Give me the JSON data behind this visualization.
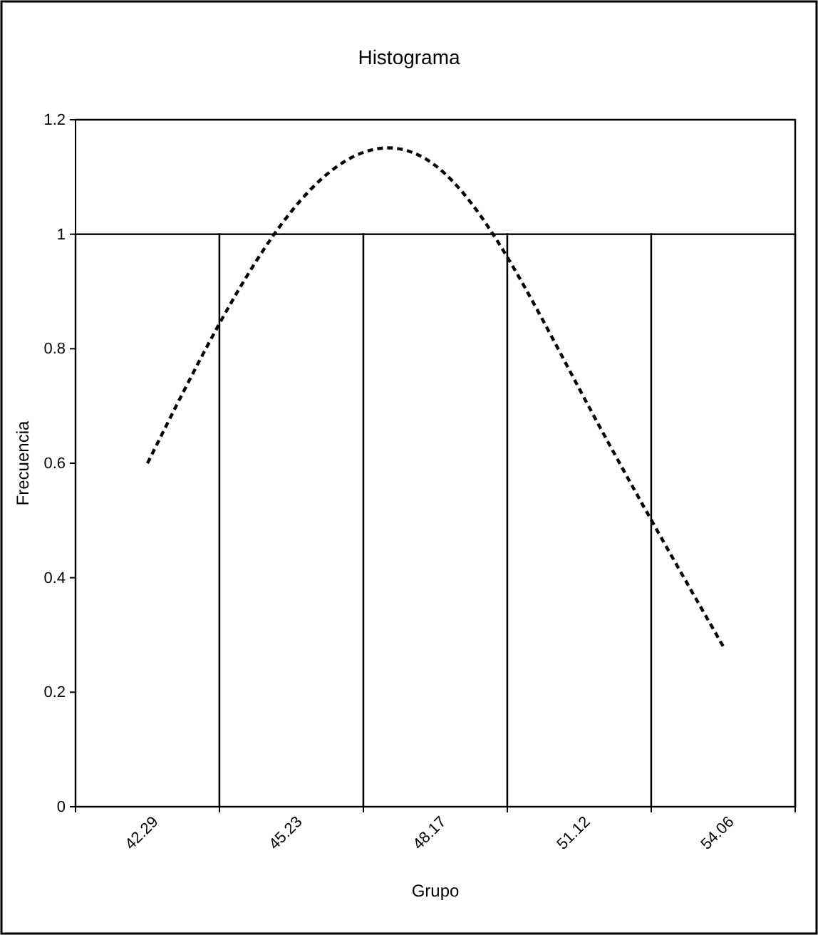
{
  "chart_data": {
    "type": "bar",
    "title": "Histograma",
    "xlabel": "Grupo",
    "ylabel": "Frecuencia",
    "categories": [
      "42.29",
      "45.23",
      "48.17",
      "51.12",
      "54.06"
    ],
    "series": [
      {
        "color": "#ffffff",
        "values": [
          1,
          1,
          1,
          1,
          1
        ]
      },
      {
        "type": "line",
        "color": "#000000",
        "line_style": "dashed",
        "marker": "none",
        "values": [
          0.6,
          1.04,
          1.12,
          0.73,
          0.28
        ]
      }
    ],
    "ylim": [
      0,
      1.2
    ],
    "yticks": [
      0,
      0.2,
      0.4,
      0.6,
      0.8,
      1,
      1.2
    ],
    "grid": false
  }
}
